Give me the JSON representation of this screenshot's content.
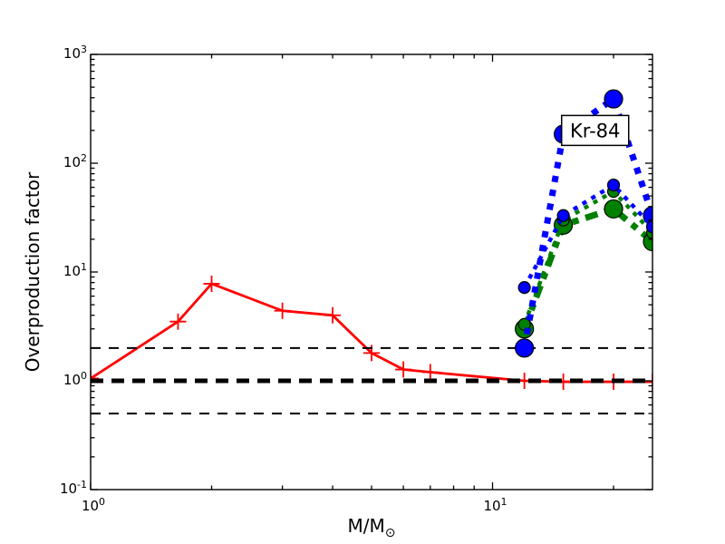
{
  "figure": {
    "background": "#ffffff",
    "axes_color": "#000000"
  },
  "chart_data": {
    "type": "line",
    "title": "",
    "xlabel": "M/M⊙",
    "xlabel_parts": {
      "main": "M/M",
      "sub": "⊙"
    },
    "ylabel": "Overproduction factor",
    "xscale": "log",
    "yscale": "log",
    "xlim": [
      1,
      25
    ],
    "ylim": [
      0.1,
      1000
    ],
    "grid": false,
    "legend": "none",
    "x_ticks": [
      {
        "value": 1,
        "base": "10",
        "exp": "0"
      },
      {
        "value": 10,
        "base": "10",
        "exp": "1"
      }
    ],
    "x_minor_ticks": [
      2,
      3,
      4,
      5,
      6,
      7,
      8,
      9,
      20
    ],
    "y_ticks": [
      {
        "value": 1000,
        "base": "10",
        "exp": "3"
      },
      {
        "value": 100,
        "base": "10",
        "exp": "2"
      },
      {
        "value": 10,
        "base": "10",
        "exp": "1"
      },
      {
        "value": 1,
        "base": "10",
        "exp": "0"
      },
      {
        "value": 0.1,
        "base": "10",
        "exp": "-1"
      }
    ],
    "reference_lines": [
      {
        "y": 1.0,
        "color": "#000000",
        "style": "dashed-thick"
      },
      {
        "y": 2.0,
        "color": "#000000",
        "style": "dashed-thin"
      },
      {
        "y": 0.5,
        "color": "#000000",
        "style": "dashed-thin"
      }
    ],
    "series": [
      {
        "name": "red-solid-plus",
        "color": "#ff0000",
        "line": "solid",
        "marker": "plus",
        "x": [
          1,
          1.65,
          2,
          3,
          4,
          5,
          6,
          7,
          12,
          15,
          20,
          25
        ],
        "y": [
          1.05,
          3.5,
          7.8,
          4.4,
          4.0,
          1.8,
          1.27,
          1.2,
          1.0,
          0.98,
          0.98,
          0.98
        ]
      },
      {
        "name": "green-thick-dashdot-large-circles",
        "color": "#008000",
        "line": "dashdot-thick",
        "marker": "circle-large",
        "x": [
          12,
          15,
          20,
          25
        ],
        "y": [
          3.0,
          27,
          38,
          19
        ]
      },
      {
        "name": "green-thin-dotted-small-circles",
        "color": "#008000",
        "line": "dotted-thin",
        "marker": "circle-small",
        "x": [
          12,
          15,
          20,
          25
        ],
        "y": [
          3.3,
          30,
          55,
          23
        ]
      },
      {
        "name": "blue-thick-dotted-large-circles",
        "color": "#0000ff",
        "line": "dotted-thick",
        "marker": "circle-large",
        "x": [
          12,
          15,
          20,
          25
        ],
        "y": [
          2.0,
          185,
          390,
          33
        ]
      },
      {
        "name": "blue-thin-dotted-small-circles",
        "color": "#0000ff",
        "line": "dotted-thin",
        "marker": "circle-small",
        "x": [
          12,
          15,
          20,
          25
        ],
        "y": [
          7.2,
          33,
          63,
          26
        ]
      }
    ],
    "annotation": {
      "label": "Kr-84",
      "x": 18,
      "y": 200
    }
  }
}
